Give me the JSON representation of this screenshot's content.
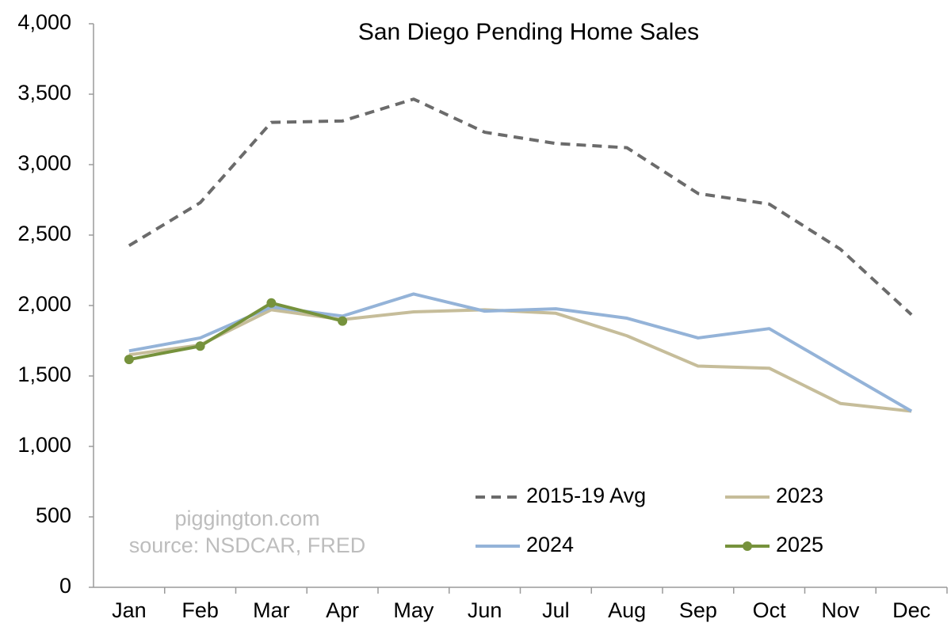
{
  "chart_data": {
    "type": "line",
    "title": "San Diego Pending Home Sales",
    "categories": [
      "Jan",
      "Feb",
      "Mar",
      "Apr",
      "May",
      "Jun",
      "Jul",
      "Aug",
      "Sep",
      "Oct",
      "Nov",
      "Dec"
    ],
    "series": [
      {
        "name": "2015-19 Avg",
        "color": "#6b6b6b",
        "dash": true,
        "values": [
          2425,
          2730,
          3300,
          3310,
          3465,
          3230,
          3150,
          3120,
          2795,
          2720,
          2400,
          1935
        ]
      },
      {
        "name": "2023",
        "color": "#c6bd9a",
        "values": [
          1650,
          1720,
          1970,
          1900,
          1955,
          1970,
          1945,
          1785,
          1570,
          1555,
          1305,
          1250
        ]
      },
      {
        "name": "2024",
        "color": "#94b3d8",
        "values": [
          1678,
          1770,
          1990,
          1925,
          2082,
          1960,
          1977,
          1910,
          1770,
          1836,
          1543,
          1250
        ]
      },
      {
        "name": "2025",
        "color": "#76923c",
        "marker": true,
        "values": [
          1617,
          1712,
          2018,
          1890,
          null,
          null,
          null,
          null,
          null,
          null,
          null,
          null
        ]
      }
    ],
    "ylim": [
      0,
      4000
    ],
    "yticks": [
      0,
      500,
      {
        "value": 1000,
        "label": "1,000"
      },
      {
        "value": 1500,
        "label": "1,500"
      },
      {
        "value": 2000,
        "label": "2,000"
      },
      {
        "value": 2500,
        "label": "2,500"
      },
      {
        "value": 3000,
        "label": "3,000"
      },
      {
        "value": 3500,
        "label": "3,500"
      },
      {
        "value": 4000,
        "label": "4,000"
      }
    ],
    "grid": false,
    "legend": "lower right",
    "annotations": [
      "piggington.com",
      "source: NSDCAR, FRED"
    ]
  }
}
